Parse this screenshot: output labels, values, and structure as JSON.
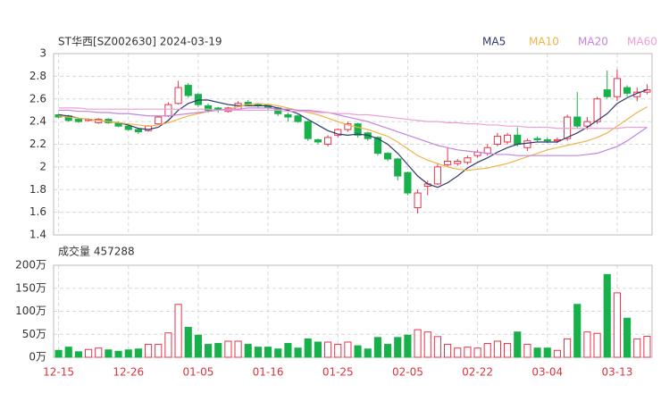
{
  "chart_data": [
    {
      "type": "candlestick",
      "title": "ST华西[SZ002630] 2024-03-19",
      "up_color": "#e8334a",
      "down_color": "#18b04a",
      "open": [
        2.46,
        2.45,
        2.42,
        2.41,
        2.39,
        2.42,
        2.39,
        2.36,
        2.33,
        2.32,
        2.38,
        2.45,
        2.56,
        2.72,
        2.64,
        2.54,
        2.52,
        2.49,
        2.51,
        2.57,
        2.55,
        2.55,
        2.52,
        2.46,
        2.45,
        2.4,
        2.24,
        2.2,
        2.28,
        2.33,
        2.38,
        2.3,
        2.26,
        2.12,
        2.07,
        1.95,
        1.64,
        1.83,
        1.85,
        2.02,
        2.03,
        2.04,
        2.1,
        2.12,
        2.2,
        2.22,
        2.28,
        2.17,
        2.25,
        2.24,
        2.23,
        2.25,
        2.44,
        2.36,
        2.4,
        2.68,
        2.62,
        2.7,
        2.62,
        2.66
      ],
      "close": [
        2.44,
        2.41,
        2.4,
        2.42,
        2.42,
        2.39,
        2.36,
        2.33,
        2.31,
        2.36,
        2.44,
        2.55,
        2.7,
        2.63,
        2.55,
        2.5,
        2.5,
        2.52,
        2.56,
        2.55,
        2.54,
        2.52,
        2.47,
        2.44,
        2.4,
        2.25,
        2.22,
        2.26,
        2.33,
        2.38,
        2.28,
        2.25,
        2.12,
        2.07,
        1.92,
        1.77,
        1.77,
        1.85,
        2.0,
        2.05,
        2.05,
        2.08,
        2.13,
        2.17,
        2.27,
        2.28,
        2.2,
        2.23,
        2.24,
        2.23,
        2.24,
        2.44,
        2.36,
        2.4,
        2.6,
        2.62,
        2.78,
        2.65,
        2.66,
        2.68
      ],
      "high": [
        2.47,
        2.46,
        2.43,
        2.43,
        2.43,
        2.43,
        2.4,
        2.37,
        2.34,
        2.37,
        2.45,
        2.57,
        2.76,
        2.74,
        2.65,
        2.56,
        2.53,
        2.53,
        2.58,
        2.59,
        2.56,
        2.56,
        2.53,
        2.48,
        2.46,
        2.41,
        2.25,
        2.28,
        2.34,
        2.4,
        2.39,
        2.31,
        2.27,
        2.13,
        2.08,
        1.96,
        1.8,
        1.88,
        2.03,
        2.17,
        2.07,
        2.1,
        2.15,
        2.2,
        2.3,
        2.3,
        2.35,
        2.25,
        2.27,
        2.26,
        2.26,
        2.46,
        2.66,
        2.44,
        2.62,
        2.85,
        2.86,
        2.72,
        2.7,
        2.73
      ],
      "low": [
        2.43,
        2.4,
        2.39,
        2.4,
        2.38,
        2.38,
        2.35,
        2.32,
        2.29,
        2.31,
        2.37,
        2.44,
        2.55,
        2.61,
        2.53,
        2.48,
        2.48,
        2.48,
        2.5,
        2.54,
        2.52,
        2.5,
        2.45,
        2.4,
        2.39,
        2.23,
        2.2,
        2.18,
        2.26,
        2.31,
        2.26,
        2.23,
        2.1,
        2.05,
        1.88,
        1.75,
        1.59,
        1.75,
        1.84,
        2.0,
        2.01,
        2.02,
        2.08,
        2.1,
        2.18,
        2.2,
        2.18,
        2.14,
        2.22,
        2.21,
        2.21,
        2.23,
        2.34,
        2.33,
        2.38,
        2.6,
        2.58,
        2.62,
        2.58,
        2.64
      ],
      "series": [
        {
          "name": "MA5",
          "color": "#2e3a6e",
          "values": [
            2.46,
            2.45,
            2.43,
            2.42,
            2.41,
            2.4,
            2.39,
            2.37,
            2.34,
            2.33,
            2.35,
            2.41,
            2.5,
            2.56,
            2.59,
            2.59,
            2.57,
            2.55,
            2.54,
            2.54,
            2.54,
            2.54,
            2.52,
            2.5,
            2.47,
            2.42,
            2.37,
            2.32,
            2.29,
            2.28,
            2.29,
            2.28,
            2.25,
            2.2,
            2.12,
            2.02,
            1.92,
            1.85,
            1.82,
            1.86,
            1.92,
            1.99,
            2.04,
            2.08,
            2.13,
            2.17,
            2.2,
            2.21,
            2.22,
            2.22,
            2.22,
            2.26,
            2.3,
            2.35,
            2.41,
            2.47,
            2.56,
            2.61,
            2.65,
            2.68
          ]
        },
        {
          "name": "MA10",
          "color": "#f2b347",
          "values": [
            2.45,
            2.44,
            2.43,
            2.42,
            2.41,
            2.4,
            2.39,
            2.38,
            2.37,
            2.36,
            2.37,
            2.39,
            2.42,
            2.45,
            2.47,
            2.49,
            2.5,
            2.51,
            2.53,
            2.55,
            2.56,
            2.55,
            2.54,
            2.52,
            2.5,
            2.48,
            2.46,
            2.43,
            2.4,
            2.37,
            2.35,
            2.33,
            2.3,
            2.27,
            2.22,
            2.16,
            2.1,
            2.06,
            2.03,
            2.0,
            1.98,
            1.97,
            1.98,
            1.99,
            2.01,
            2.03,
            2.06,
            2.09,
            2.12,
            2.15,
            2.17,
            2.19,
            2.21,
            2.23,
            2.26,
            2.3,
            2.36,
            2.42,
            2.48,
            2.53
          ]
        },
        {
          "name": "MA20",
          "color": "#c583e0",
          "values": [
            2.5,
            2.5,
            2.49,
            2.49,
            2.48,
            2.48,
            2.47,
            2.47,
            2.46,
            2.45,
            2.45,
            2.45,
            2.46,
            2.47,
            2.48,
            2.49,
            2.5,
            2.51,
            2.51,
            2.52,
            2.52,
            2.52,
            2.51,
            2.51,
            2.5,
            2.5,
            2.49,
            2.48,
            2.46,
            2.44,
            2.42,
            2.4,
            2.37,
            2.34,
            2.31,
            2.28,
            2.25,
            2.22,
            2.19,
            2.17,
            2.15,
            2.14,
            2.13,
            2.12,
            2.11,
            2.11,
            2.1,
            2.1,
            2.1,
            2.1,
            2.1,
            2.1,
            2.1,
            2.11,
            2.12,
            2.15,
            2.18,
            2.23,
            2.29,
            2.35
          ]
        },
        {
          "name": "MA60",
          "color": "#ef9fd2",
          "values": [
            2.52,
            2.52,
            2.52,
            2.51,
            2.51,
            2.51,
            2.51,
            2.51,
            2.51,
            2.51,
            2.51,
            2.51,
            2.51,
            2.51,
            2.51,
            2.51,
            2.5,
            2.5,
            2.5,
            2.5,
            2.5,
            2.5,
            2.5,
            2.49,
            2.49,
            2.49,
            2.48,
            2.48,
            2.47,
            2.47,
            2.46,
            2.46,
            2.45,
            2.44,
            2.43,
            2.42,
            2.41,
            2.4,
            2.4,
            2.39,
            2.39,
            2.38,
            2.38,
            2.37,
            2.37,
            2.36,
            2.36,
            2.35,
            2.35,
            2.35,
            2.34,
            2.34,
            2.34,
            2.34,
            2.34,
            2.34,
            2.34,
            2.35,
            2.35,
            2.35
          ]
        }
      ],
      "ylim": [
        1.4,
        3
      ],
      "yticks": [
        1.4,
        1.6,
        1.8,
        2,
        2.2,
        2.4,
        2.6,
        2.8,
        3
      ],
      "grid": true
    },
    {
      "type": "bar",
      "title": "成交量 457288",
      "categories": [
        "12-15",
        null,
        null,
        null,
        null,
        null,
        null,
        "12-26",
        null,
        null,
        null,
        null,
        null,
        null,
        "01-05",
        null,
        null,
        null,
        null,
        null,
        null,
        "01-16",
        null,
        null,
        null,
        null,
        null,
        null,
        "01-25",
        null,
        null,
        null,
        null,
        null,
        null,
        "02-05",
        null,
        null,
        null,
        null,
        null,
        null,
        "02-22",
        null,
        null,
        null,
        null,
        null,
        null,
        "03-04",
        null,
        null,
        null,
        null,
        null,
        null,
        "03-13",
        null,
        null,
        null
      ],
      "values": [
        15,
        22,
        12,
        17,
        20,
        16,
        13,
        16,
        18,
        28,
        28,
        53,
        115,
        65,
        48,
        28,
        30,
        35,
        35,
        28,
        22,
        22,
        18,
        30,
        20,
        40,
        33,
        33,
        28,
        33,
        25,
        18,
        43,
        28,
        43,
        48,
        60,
        55,
        45,
        28,
        20,
        22,
        20,
        30,
        35,
        30,
        55,
        28,
        20,
        20,
        15,
        40,
        115,
        55,
        52,
        180,
        140,
        85,
        40,
        45.7
      ],
      "ylim": [
        0,
        200
      ],
      "yticks": [
        {
          "value": 0,
          "label": "0万"
        },
        {
          "value": 50,
          "label": "50万"
        },
        {
          "value": 100,
          "label": "100万"
        },
        {
          "value": 150,
          "label": "150万"
        },
        {
          "value": 200,
          "label": "200万"
        }
      ],
      "grid": true
    }
  ]
}
